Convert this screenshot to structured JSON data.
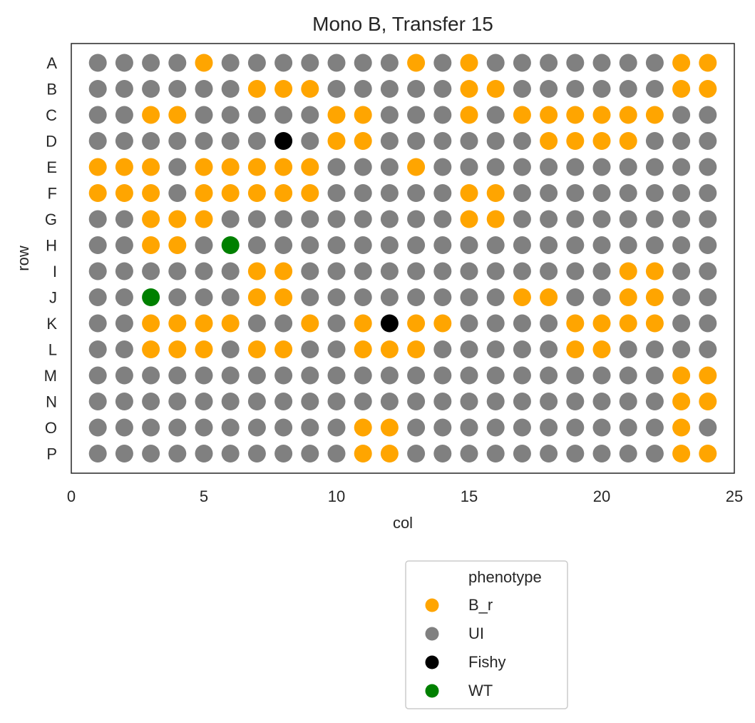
{
  "chart_data": {
    "type": "scatter",
    "title": "Mono B, Transfer 15",
    "xlabel": "col",
    "ylabel": "row",
    "xlim": [
      0,
      25
    ],
    "xticks": [
      0,
      5,
      10,
      15,
      20,
      25
    ],
    "rows": [
      "A",
      "B",
      "C",
      "D",
      "E",
      "F",
      "G",
      "H",
      "I",
      "J",
      "K",
      "L",
      "M",
      "N",
      "O",
      "P"
    ],
    "cols": [
      1,
      2,
      3,
      4,
      5,
      6,
      7,
      8,
      9,
      10,
      11,
      12,
      13,
      14,
      15,
      16,
      17,
      18,
      19,
      20,
      21,
      22,
      23,
      24
    ],
    "grid": false,
    "legend": {
      "title": "phenotype",
      "placement": "below-right",
      "entries": [
        {
          "key": "B",
          "label": "B_r",
          "color": "#FFA500"
        },
        {
          "key": "U",
          "label": "UI",
          "color": "#808080"
        },
        {
          "key": "F",
          "label": "Fishy",
          "color": "#000000"
        },
        {
          "key": "W",
          "label": "WT",
          "color": "#008000"
        }
      ]
    },
    "plate": [
      "UUUUBUUUUUUUBUBUUUUUUUBB",
      "UUUUUUBBBUUUUUBBUUUUUUBB",
      "UUBBUUUUUBBUUUBUBBBBBBUU",
      "UUUUUUUFUBBUUUUUUBBBBUUU",
      "BBBUBBBBBUUUBUUUUUUUUUUU",
      "BBBUBBBBBUUUUUBBUUUUUUUU",
      "UUBBBUUUUUUUUUBBUUUUUUUU",
      "UUBBUWUUUUUUUUUUUUUUUUUU",
      "UUUUUUBBUUUUUUUUUUUUBBUU",
      "UUWUUUBBUUUUUUUUBBUUBBUU",
      "UUBBBBUUBUBFBBUUUUBBBBUU",
      "UUBBBUBBUUBBBUUUUUBBUUUU",
      "UUUUUUUUUUUUUUUUUUUUUUBB",
      "UUUUUUUUUUUUUUUUUUUUUUBB",
      "UUUUUUUUUUBBUUUUUUUUUUBU",
      "UUUUUUUUUUBBUUUUUUUUUUBB"
    ]
  }
}
